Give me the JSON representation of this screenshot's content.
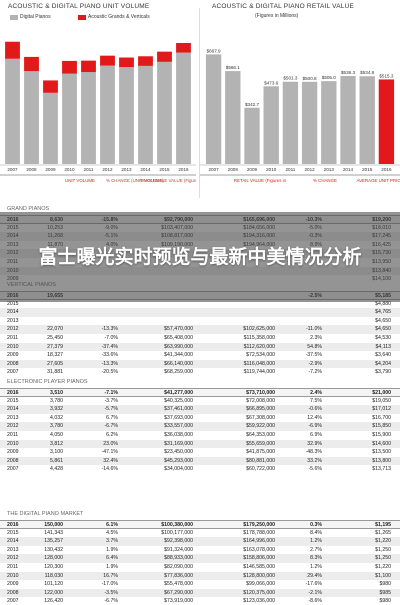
{
  "overlay": {
    "text": "富士曝光实时预览与最新中美情况分析"
  },
  "colors": {
    "gray": "#b3b3b3",
    "red": "#e2191b",
    "header_line": "#444"
  },
  "chart_data": [
    {
      "type": "bar",
      "title": "ACOUSTIC & DIGITAL PIANO UNIT VOLUME",
      "legend": [
        "Digital Pianos",
        "Acoustic Grands & Verticals"
      ],
      "categories": [
        "2007",
        "2008",
        "2009",
        "2010",
        "2011",
        "2012",
        "2013",
        "2014",
        "2015",
        "2016"
      ],
      "series": [
        {
          "name": "Digital Pianos",
          "color": "gray",
          "values": [
            340,
            300,
            230,
            292,
            297,
            318,
            313,
            317,
            330,
            360
          ]
        },
        {
          "name": "Acoustic Grands & Verticals",
          "color": "red",
          "values": [
            55,
            46,
            40,
            41,
            37,
            32,
            31,
            31,
            33,
            31
          ]
        }
      ],
      "bar_labels": [
        "",
        "",
        "",
        "",
        "",
        "",
        "",
        "",
        "",
        ""
      ],
      "bottom_labels": [
        "UNIT VOLUME",
        "% CHANGE (UNIT VOLUME)",
        "WHOLESALE VALUE (Figures in Millions)"
      ]
    },
    {
      "type": "bar",
      "title": "ACOUSTIC & DIGITAL PIANO RETAIL VALUE",
      "subtitle": "(Figures in Millions)",
      "categories": [
        "2007",
        "2008",
        "2009",
        "2010",
        "2011",
        "2012",
        "2013",
        "2014",
        "2015",
        "2016"
      ],
      "values": [
        667.9,
        566.1,
        342.7,
        473.6,
        501.3,
        500.8,
        505,
        536.3,
        534.8,
        515.3
      ],
      "highlight": [
        false,
        false,
        false,
        false,
        false,
        false,
        false,
        false,
        false,
        true
      ],
      "value_labels": [
        "$667.9",
        "$566.1",
        "$342.7",
        "$473.6",
        "$501.3",
        "$500.8",
        "$505.0",
        "$536.3",
        "$534.8",
        "$515.3"
      ],
      "ylim": [
        0,
        780
      ],
      "bottom_labels": [
        "RETAIL VALUE (Figures in Millions)",
        "% CHANGE",
        "AVERAGE UNIT PRICE"
      ]
    },
    {
      "type": "table",
      "sections": [
        {
          "title": "GRAND PIANOS",
          "rows": [
            [
              "2016",
              "8,630",
              "-15.8%",
              "$92,790,000",
              "$165,696,000",
              "-10.3%",
              "$19,200"
            ],
            [
              "2015",
              "10,253",
              "-9.0%",
              "$103,407,000",
              "$184,656,000",
              "-5.0%",
              "$18,010"
            ],
            [
              "2014",
              "11,268",
              "-5.1%",
              "$108,817,000",
              "$194,316,000",
              "-0.3%",
              "$17,245"
            ],
            [
              "2013",
              "11,870",
              "4.0%",
              "$109,190,000",
              "$194,964,000",
              "8.9%",
              "$16,425"
            ],
            [
              "2012",
              "",
              "",
              "",
              "",
              "",
              "$15,730"
            ],
            [
              "2011",
              "",
              "",
              "",
              "",
              "",
              "$13,950"
            ],
            [
              "2010",
              "",
              "",
              "",
              "",
              "",
              "$13,840"
            ],
            [
              "2009",
              "",
              "",
              "",
              "",
              "",
              "$14,100"
            ]
          ]
        },
        {
          "title": "VERTICAL PIANOS",
          "rows": [
            [
              "2016",
              "19,655",
              "",
              "",
              "",
              "-2.5%",
              "$5,185"
            ],
            [
              "2015",
              "",
              "",
              "",
              "",
              "",
              "$4,880"
            ],
            [
              "2014",
              "",
              "",
              "",
              "",
              "",
              "$4,765"
            ],
            [
              "2013",
              "",
              "",
              "",
              "",
              "",
              "$4,650"
            ],
            [
              "2012",
              "22,070",
              "-13.3%",
              "$57,470,000",
              "$102,625,000",
              "-11.0%",
              "$4,650"
            ],
            [
              "2011",
              "25,450",
              "-7.0%",
              "$65,408,000",
              "$115,358,000",
              "2.3%",
              "$4,530"
            ],
            [
              "2010",
              "27,379",
              "-37.4%",
              "$63,990,000",
              "$112,620,000",
              "54.8%",
              "$4,113"
            ],
            [
              "2009",
              "18,327",
              "-33.6%",
              "$41,344,000",
              "$72,534,000",
              "-37.5%",
              "$3,640"
            ],
            [
              "2008",
              "27,605",
              "-13.3%",
              "$66,140,000",
              "$116,048,000",
              "-2.9%",
              "$4,204"
            ],
            [
              "2007",
              "31,881",
              "-20.5%",
              "$68,259,000",
              "$119,744,000",
              "-7.2%",
              "$3,790"
            ]
          ]
        },
        {
          "title": "ELECTRONIC PLAYER PIANOS",
          "rows": [
            [
              "2016",
              "3,510",
              "-7.1%",
              "$41,277,000",
              "$73,710,000",
              "2.4%",
              "$21,000"
            ],
            [
              "2015",
              "3,780",
              "-3.7%",
              "$40,325,000",
              "$72,008,000",
              "7.5%",
              "$19,050"
            ],
            [
              "2014",
              "3,932",
              "-5.7%",
              "$37,461,000",
              "$66,895,000",
              "-0.6%",
              "$17,012"
            ],
            [
              "2013",
              "4,032",
              "6.7%",
              "$37,693,000",
              "$67,308,000",
              "12.4%",
              "$16,700"
            ],
            [
              "2012",
              "3,780",
              "-6.7%",
              "$33,557,000",
              "$59,922,000",
              "-6.9%",
              "$15,850"
            ],
            [
              "2011",
              "4,050",
              "6.2%",
              "$36,038,000",
              "$64,353,000",
              "6.9%",
              "$15,900"
            ],
            [
              "2010",
              "3,812",
              "23.0%",
              "$31,169,000",
              "$55,659,000",
              "32.9%",
              "$14,600"
            ],
            [
              "2009",
              "3,100",
              "-47.1%",
              "$23,450,000",
              "$41,875,000",
              "-48.3%",
              "$13,500"
            ],
            [
              "2008",
              "5,861",
              "32.4%",
              "$45,293,000",
              "$80,881,000",
              "33.2%",
              "$13,800"
            ],
            [
              "2007",
              "4,428",
              "-14.6%",
              "$34,004,000",
              "$60,722,000",
              "-5.6%",
              "$13,713"
            ]
          ]
        },
        {
          "title": "THE DIGITAL PIANO MARKET",
          "rows": [
            [
              "2016",
              "150,000",
              "6.1%",
              "$100,380,000",
              "$179,250,000",
              "0.3%",
              "$1,195"
            ],
            [
              "2015",
              "141,343",
              "4.5%",
              "$100,177,000",
              "$178,788,000",
              "8.4%",
              "$1,265"
            ],
            [
              "2014",
              "135,257",
              "3.7%",
              "$92,398,000",
              "$164,996,000",
              "1.2%",
              "$1,220"
            ],
            [
              "2013",
              "130,432",
              "1.9%",
              "$91,324,000",
              "$163,078,000",
              "2.7%",
              "$1,250"
            ],
            [
              "2012",
              "128,000",
              "6.4%",
              "$88,933,000",
              "$158,806,000",
              "8.3%",
              "$1,250"
            ],
            [
              "2011",
              "120,300",
              "1.9%",
              "$82,090,000",
              "$146,585,000",
              "1.2%",
              "$1,220"
            ],
            [
              "2010",
              "118,030",
              "16.7%",
              "$77,836,000",
              "$128,800,000",
              "29.4%",
              "$1,100"
            ],
            [
              "2009",
              "101,120",
              "-17.0%",
              "$55,478,000",
              "$99,066,000",
              "-17.6%",
              "$980"
            ],
            [
              "2008",
              "122,000",
              "-3.5%",
              "$67,290,000",
              "$120,375,000",
              "-2.1%",
              "$985"
            ],
            [
              "2007",
              "126,420",
              "-6.7%",
              "$73,919,000",
              "$123,036,000",
              "-8.6%",
              "$980"
            ]
          ]
        }
      ]
    }
  ]
}
